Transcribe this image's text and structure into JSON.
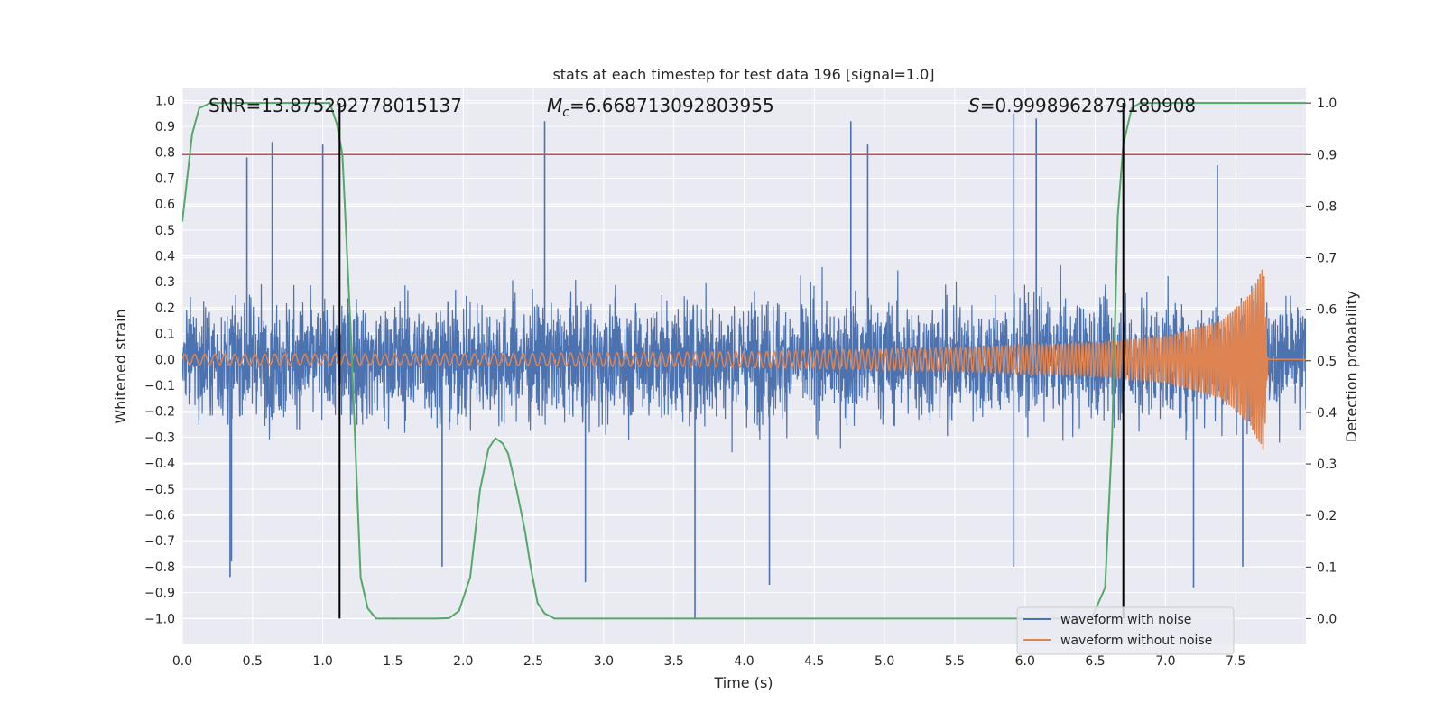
{
  "chart_data": {
    "type": "line",
    "title": "stats at each timestep for test data 196 [signal=1.0]",
    "xlabel": "Time (s)",
    "ylabel_left": "Whitened strain",
    "ylabel_right": "Detection probability",
    "xlim": [
      0.0,
      8.0
    ],
    "ylim_left": [
      -1.1,
      1.05
    ],
    "ylim_right": [
      -0.05,
      1.03
    ],
    "x_ticks": [
      "0.0",
      "0.5",
      "1.0",
      "1.5",
      "2.0",
      "2.5",
      "3.0",
      "3.5",
      "4.0",
      "4.5",
      "5.0",
      "5.5",
      "6.0",
      "6.5",
      "7.0",
      "7.5"
    ],
    "x_tick_values": [
      0.0,
      0.5,
      1.0,
      1.5,
      2.0,
      2.5,
      3.0,
      3.5,
      4.0,
      4.5,
      5.0,
      5.5,
      6.0,
      6.5,
      7.0,
      7.5
    ],
    "y_left_ticks": [
      "1.0",
      "0.9",
      "0.8",
      "0.7",
      "0.6",
      "0.5",
      "0.4",
      "0.3",
      "0.2",
      "0.1",
      "0.0",
      "−0.1",
      "−0.2",
      "−0.3",
      "−0.4",
      "−0.5",
      "−0.6",
      "−0.7",
      "−0.8",
      "−0.9",
      "−1.0"
    ],
    "y_left_tick_values": [
      1.0,
      0.9,
      0.8,
      0.7,
      0.6,
      0.5,
      0.4,
      0.3,
      0.2,
      0.1,
      0.0,
      -0.1,
      -0.2,
      -0.3,
      -0.4,
      -0.5,
      -0.6,
      -0.7,
      -0.8,
      -0.9,
      -1.0
    ],
    "y_right_ticks": [
      "1.0",
      "0.9",
      "0.8",
      "0.7",
      "0.6",
      "0.5",
      "0.4",
      "0.3",
      "0.2",
      "0.1",
      "0.0"
    ],
    "y_right_tick_values": [
      1.0,
      0.9,
      0.8,
      0.7,
      0.6,
      0.5,
      0.4,
      0.3,
      0.2,
      0.1,
      0.0
    ],
    "annotations": {
      "snr": "SNR=13.875292778015137",
      "mc_symbol": "M",
      "mc_sub": "c",
      "mc_value": "=6.668713092803955",
      "s_symbol": "S",
      "s_value": "=0.9998962879180908"
    },
    "threshold": {
      "value": 0.9,
      "axis": "right",
      "color": "#c44e52"
    },
    "vertical_lines": [
      1.12,
      6.7
    ],
    "series": [
      {
        "name": "waveform with noise",
        "color": "#4c72b0",
        "axis": "left",
        "description": "noisy whitened strain, amplitude mostly within ±0.45 with spikes",
        "spikes": [
          {
            "x": 0.46,
            "y": 0.78
          },
          {
            "x": 0.64,
            "y": 0.84
          },
          {
            "x": 1.0,
            "y": 0.83
          },
          {
            "x": 2.58,
            "y": 0.92
          },
          {
            "x": 4.76,
            "y": 0.92
          },
          {
            "x": 4.88,
            "y": 0.83
          },
          {
            "x": 5.92,
            "y": 0.95
          },
          {
            "x": 6.08,
            "y": 0.93
          },
          {
            "x": 7.37,
            "y": 0.75
          },
          {
            "x": 0.35,
            "y": -0.78
          },
          {
            "x": 0.34,
            "y": -0.84
          },
          {
            "x": 1.85,
            "y": -0.8
          },
          {
            "x": 2.87,
            "y": -0.86
          },
          {
            "x": 3.65,
            "y": -1.0
          },
          {
            "x": 4.18,
            "y": -0.87
          },
          {
            "x": 5.92,
            "y": -0.8
          },
          {
            "x": 7.2,
            "y": -0.88
          },
          {
            "x": 7.55,
            "y": -0.8
          }
        ]
      },
      {
        "name": "waveform without noise",
        "color": "#dd8452",
        "axis": "left",
        "description": "chirp signal: amplitude grows from ~0.02 to peak ~0.36 at t≈7.7s, then ringdown to 0",
        "envelope": {
          "x": [
            0.0,
            2.0,
            4.0,
            5.5,
            6.5,
            7.0,
            7.4,
            7.6,
            7.7,
            7.73,
            8.0
          ],
          "amp": [
            0.02,
            0.022,
            0.03,
            0.045,
            0.065,
            0.09,
            0.15,
            0.25,
            0.36,
            0.0,
            0.0
          ]
        },
        "chirp_phase_rate": {
          "f0_hz": 14,
          "f1_hz": 70
        }
      },
      {
        "name": "detection probability",
        "color": "#55a868",
        "axis": "right",
        "x": [
          0.0,
          0.07,
          0.12,
          0.2,
          0.5,
          0.8,
          1.0,
          1.05,
          1.1,
          1.14,
          1.2,
          1.27,
          1.32,
          1.38,
          1.5,
          1.8,
          1.9,
          1.97,
          2.05,
          2.12,
          2.18,
          2.23,
          2.28,
          2.32,
          2.38,
          2.44,
          2.48,
          2.53,
          2.58,
          2.65,
          3.0,
          4.0,
          4.9,
          5.2,
          6.0,
          6.4,
          6.48,
          6.57,
          6.62,
          6.66,
          6.7,
          6.76,
          6.82,
          7.0,
          7.5,
          8.0
        ],
        "y": [
          0.77,
          0.94,
          0.99,
          1.0,
          1.0,
          1.0,
          1.0,
          1.0,
          0.96,
          0.9,
          0.55,
          0.08,
          0.02,
          0.0,
          0.0,
          0.0,
          0.001,
          0.015,
          0.08,
          0.25,
          0.33,
          0.35,
          0.34,
          0.32,
          0.25,
          0.17,
          0.1,
          0.03,
          0.01,
          0.0,
          0.0,
          0.0,
          0.0,
          0.0,
          0.0,
          0.0,
          0.004,
          0.06,
          0.35,
          0.78,
          0.92,
          0.99,
          1.0,
          1.0,
          1.0,
          1.0
        ]
      }
    ],
    "legend": {
      "placement": "bottom-right",
      "entries": [
        {
          "label": "waveform with noise",
          "color": "#4c72b0"
        },
        {
          "label": "waveform without noise",
          "color": "#dd8452"
        }
      ]
    },
    "colors": {
      "plot_background": "#eaeaf2",
      "grid": "#ffffff",
      "vertical_line": "#000000"
    }
  }
}
